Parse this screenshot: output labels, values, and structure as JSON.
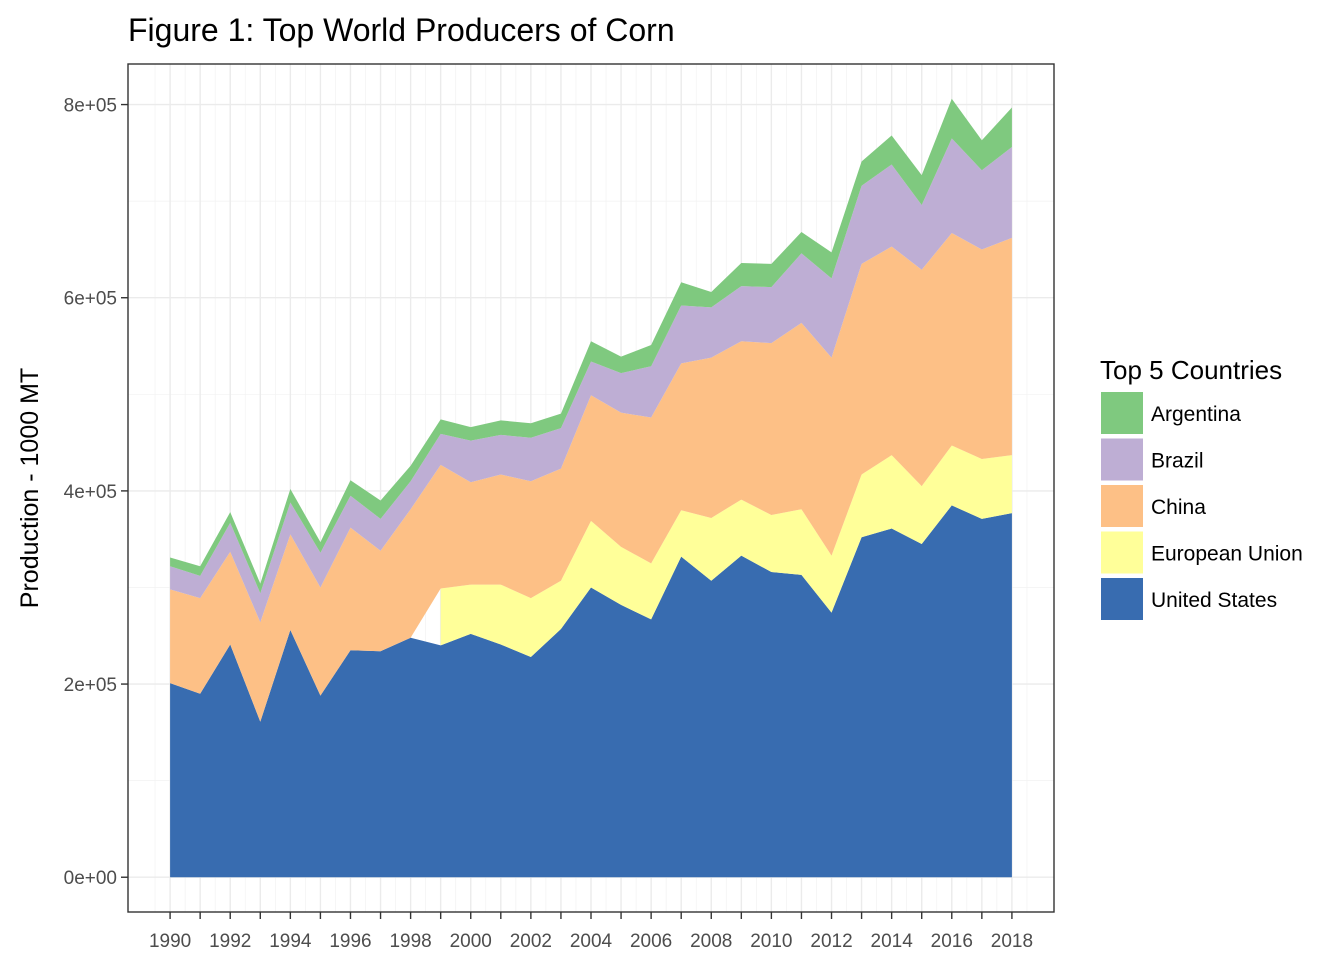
{
  "chart_data": {
    "type": "area",
    "stacked": true,
    "title": "Figure 1: Top World Producers of Corn",
    "xlabel": "",
    "ylabel": "Production - 1000 MT",
    "legend_title": "Top 5 Countries",
    "legend_position": "right",
    "grid": true,
    "xlim": [
      1988.6,
      2019.4
    ],
    "ylim": [
      -36000,
      842000
    ],
    "x": [
      1990,
      1991,
      1992,
      1993,
      1994,
      1995,
      1996,
      1997,
      1998,
      1999,
      2000,
      2001,
      2002,
      2003,
      2004,
      2005,
      2006,
      2007,
      2008,
      2009,
      2010,
      2011,
      2012,
      2013,
      2014,
      2015,
      2016,
      2017,
      2018
    ],
    "x_ticks": [
      "1990",
      "1992",
      "1994",
      "1996",
      "1998",
      "2000",
      "2002",
      "2004",
      "2006",
      "2008",
      "2010",
      "2012",
      "2014",
      "2016",
      "2018"
    ],
    "y_ticks": [
      {
        "value": 0,
        "label": "0e+00"
      },
      {
        "value": 200000,
        "label": "2e+05"
      },
      {
        "value": 400000,
        "label": "4e+05"
      },
      {
        "value": 600000,
        "label": "6e+05"
      },
      {
        "value": 800000,
        "label": "8e+05"
      }
    ],
    "series": [
      {
        "name": "United States",
        "color": "#386CB0",
        "values": [
          201000,
          190000,
          241000,
          161000,
          256000,
          188000,
          235000,
          234000,
          248000,
          240000,
          252000,
          241000,
          228000,
          257000,
          300000,
          282000,
          267000,
          332000,
          307000,
          333000,
          316000,
          313000,
          274000,
          352000,
          361000,
          345000,
          385000,
          371000,
          377000
        ]
      },
      {
        "name": "European Union",
        "color": "#FFFF99",
        "values": [
          null,
          null,
          null,
          null,
          null,
          null,
          null,
          null,
          null,
          59000,
          51000,
          62000,
          61000,
          50000,
          69000,
          60000,
          58000,
          48000,
          65000,
          58000,
          59000,
          68000,
          59000,
          65000,
          76000,
          60000,
          62000,
          62000,
          60000
        ]
      },
      {
        "name": "China",
        "color": "#FDC086",
        "values": [
          97000,
          99000,
          96000,
          103000,
          99000,
          112000,
          127000,
          104000,
          133000,
          128000,
          106000,
          114000,
          121000,
          116000,
          130000,
          139000,
          151000,
          152000,
          166000,
          164000,
          178000,
          193000,
          205000,
          218000,
          216000,
          224000,
          220000,
          217000,
          225000
        ]
      },
      {
        "name": "Brazil",
        "color": "#BEAED4",
        "values": [
          24000,
          23000,
          30000,
          30000,
          33000,
          36000,
          33000,
          33000,
          29000,
          32000,
          43000,
          41000,
          45000,
          42000,
          35000,
          41000,
          53000,
          60000,
          52000,
          57000,
          58000,
          72000,
          82000,
          81000,
          85000,
          67000,
          98000,
          82000,
          94000
        ]
      },
      {
        "name": "Argentina",
        "color": "#7FC97F",
        "values": [
          9000,
          10000,
          11000,
          10000,
          14000,
          11000,
          16000,
          19000,
          16000,
          15000,
          14000,
          15000,
          15000,
          15000,
          21000,
          17000,
          22000,
          24000,
          16000,
          24000,
          24000,
          22000,
          27000,
          25000,
          30000,
          31000,
          41000,
          31000,
          41000
        ]
      }
    ],
    "legend_order": [
      "Argentina",
      "Brazil",
      "China",
      "European Union",
      "United States"
    ]
  }
}
